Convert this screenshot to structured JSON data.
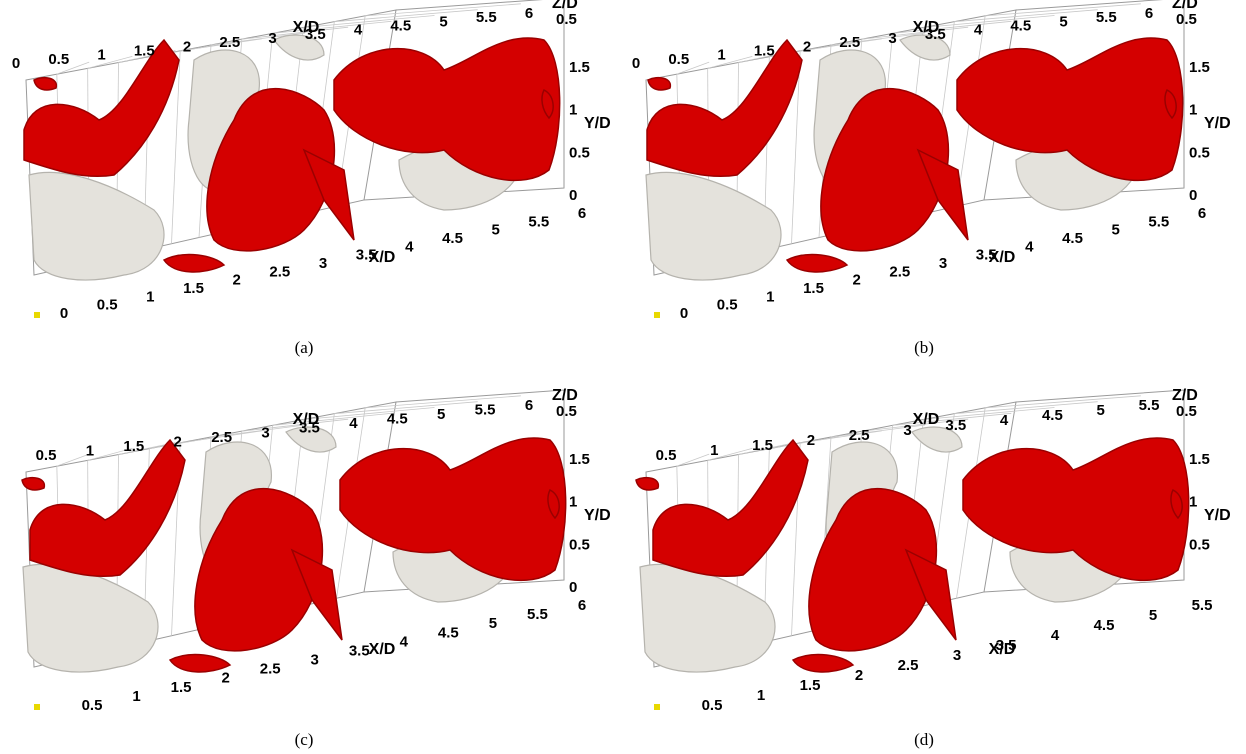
{
  "colors": {
    "vortex_red": "#d40000",
    "vortex_red_dark": "#9a0000",
    "vortex_grey": "#e4e2dc",
    "vortex_grey_dark": "#b5b3ad",
    "orientation_marker": "#e8d800"
  },
  "panels": [
    {
      "id": "a",
      "caption": "(a)",
      "axes": {
        "top_x_label": "X/D",
        "top_x_ticks": [
          "0",
          "0.5",
          "1",
          "1.5",
          "2",
          "2.5",
          "3",
          "3.5",
          "4",
          "4.5",
          "5",
          "5.5",
          "6"
        ],
        "z_label": "Z/D",
        "z_ticks": [
          "0.5"
        ],
        "y_label": "Y/D",
        "y_ticks": [
          "1.5",
          "1",
          "0.5",
          "0"
        ],
        "bottom_x_label": "X/D",
        "bottom_x_ticks": [
          "0",
          "0.5",
          "1",
          "1.5",
          "2",
          "2.5",
          "3",
          "3.5",
          "4",
          "4.5",
          "5",
          "5.5",
          "6"
        ]
      }
    },
    {
      "id": "b",
      "caption": "(b)",
      "axes": {
        "top_x_label": "X/D",
        "top_x_ticks": [
          "0",
          "0.5",
          "1",
          "1.5",
          "2",
          "2.5",
          "3",
          "3.5",
          "4",
          "4.5",
          "5",
          "5.5",
          "6"
        ],
        "z_label": "Z/D",
        "z_ticks": [
          "0.5"
        ],
        "y_label": "Y/D",
        "y_ticks": [
          "1.5",
          "1",
          "0.5",
          "0"
        ],
        "bottom_x_label": "X/D",
        "bottom_x_ticks": [
          "0",
          "0.5",
          "1",
          "1.5",
          "2",
          "2.5",
          "3",
          "3.5",
          "4",
          "4.5",
          "5",
          "5.5",
          "6"
        ]
      }
    },
    {
      "id": "c",
      "caption": "(c)",
      "axes": {
        "top_x_label": "X/D",
        "top_x_ticks": [
          "0.5",
          "1",
          "1.5",
          "2",
          "2.5",
          "3",
          "3.5",
          "4",
          "4.5",
          "5",
          "5.5",
          "6"
        ],
        "z_label": "Z/D",
        "z_ticks": [
          "0.5"
        ],
        "y_label": "Y/D",
        "y_ticks": [
          "1.5",
          "1",
          "0.5",
          "0"
        ],
        "bottom_x_label": "X/D",
        "bottom_x_ticks": [
          "0.5",
          "1",
          "1.5",
          "2",
          "2.5",
          "3",
          "3.5",
          "4",
          "4.5",
          "5",
          "5.5",
          "6"
        ]
      }
    },
    {
      "id": "d",
      "caption": "(d)",
      "axes": {
        "top_x_label": "X/D",
        "top_x_ticks": [
          "0.5",
          "1",
          "1.5",
          "2",
          "2.5",
          "3",
          "3.5",
          "4",
          "4.5",
          "5",
          "5.5"
        ],
        "z_label": "Z/D",
        "z_ticks": [
          "0.5"
        ],
        "y_label": "Y/D",
        "y_ticks": [
          "1.5",
          "1",
          "0.5"
        ],
        "bottom_x_label": "X/D",
        "bottom_x_ticks": [
          "0.5",
          "1",
          "1.5",
          "2",
          "2.5",
          "3",
          "3.5",
          "4",
          "4.5",
          "5",
          "5.5"
        ]
      }
    }
  ]
}
